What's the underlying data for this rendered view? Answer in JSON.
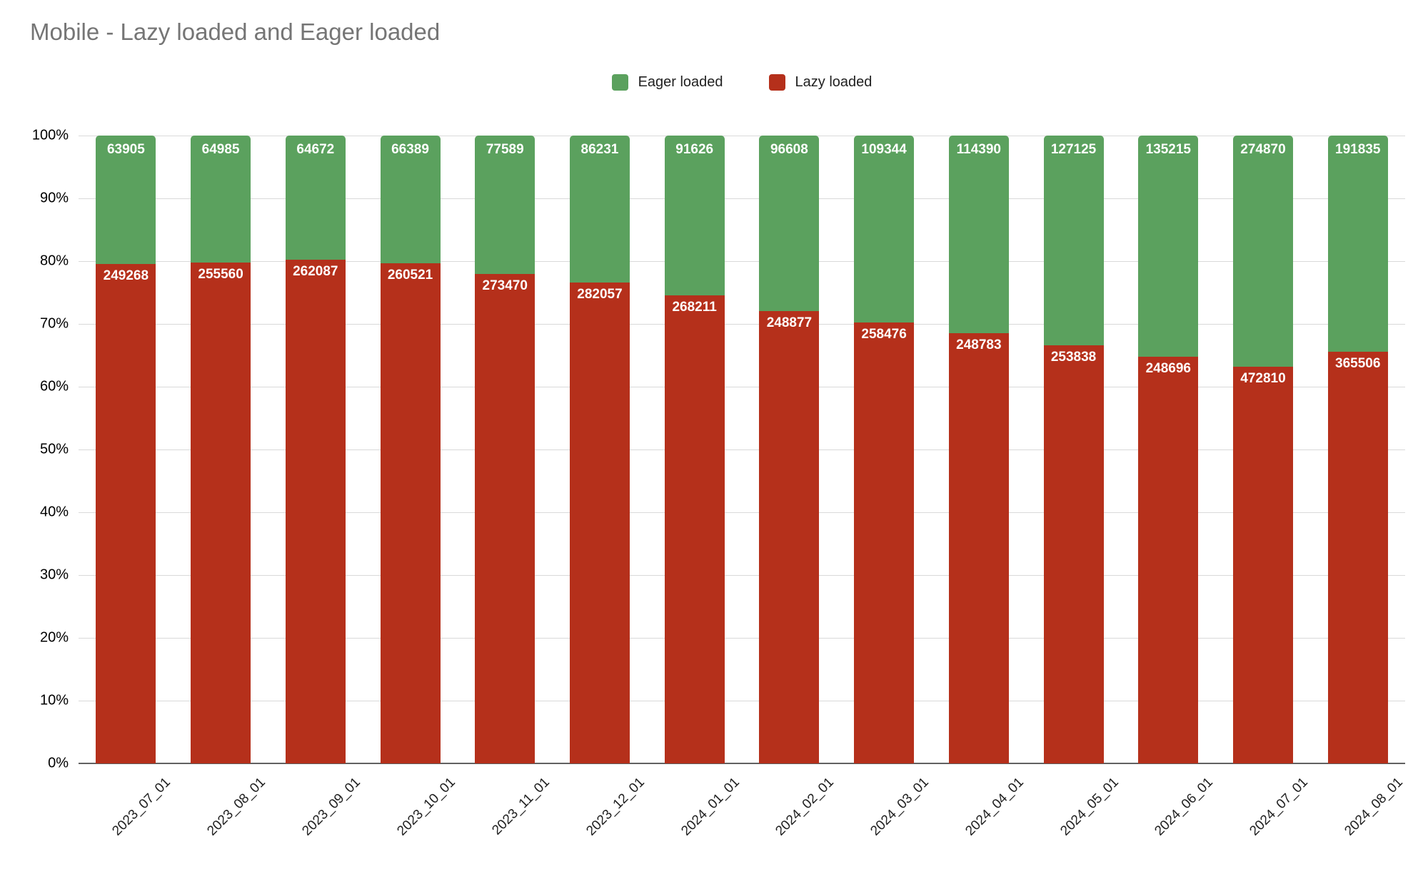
{
  "title": "Mobile - Lazy loaded and Eager loaded",
  "colors": {
    "eager_green": "#5ba15e",
    "lazy_red": "#b5301b",
    "gridline": "#d9d9d9",
    "axis": "#616161",
    "title_gray": "#757575",
    "label_white": "#ffffff"
  },
  "legend": {
    "position": "top",
    "items": [
      {
        "label": "Eager loaded",
        "color": "#5ba15e"
      },
      {
        "label": "Lazy loaded",
        "color": "#b5301b"
      }
    ]
  },
  "chart_data": {
    "type": "bar",
    "stacked": true,
    "percent_stacked": true,
    "title": "Mobile - Lazy loaded and Eager loaded",
    "xlabel": "",
    "ylabel": "",
    "ylim": [
      0,
      100
    ],
    "grid": true,
    "legend_position": "top",
    "y_ticks": [
      "0%",
      "10%",
      "20%",
      "30%",
      "40%",
      "50%",
      "60%",
      "70%",
      "80%",
      "90%",
      "100%"
    ],
    "categories": [
      "2023_07_01",
      "2023_08_01",
      "2023_09_01",
      "2023_10_01",
      "2023_11_01",
      "2023_12_01",
      "2024_01_01",
      "2024_02_01",
      "2024_03_01",
      "2024_04_01",
      "2024_05_01",
      "2024_06_01",
      "2024_07_01",
      "2024_08_01"
    ],
    "series": [
      {
        "name": "Eager loaded",
        "color": "#5ba15e",
        "values": [
          63905,
          64985,
          64672,
          66389,
          77589,
          86231,
          91626,
          96608,
          109344,
          114390,
          127125,
          135215,
          274870,
          191835
        ]
      },
      {
        "name": "Lazy loaded",
        "color": "#b5301b",
        "values": [
          249268,
          255560,
          262087,
          260521,
          273470,
          282057,
          268211,
          248877,
          258476,
          248783,
          253838,
          248696,
          472810,
          365506
        ]
      }
    ]
  }
}
